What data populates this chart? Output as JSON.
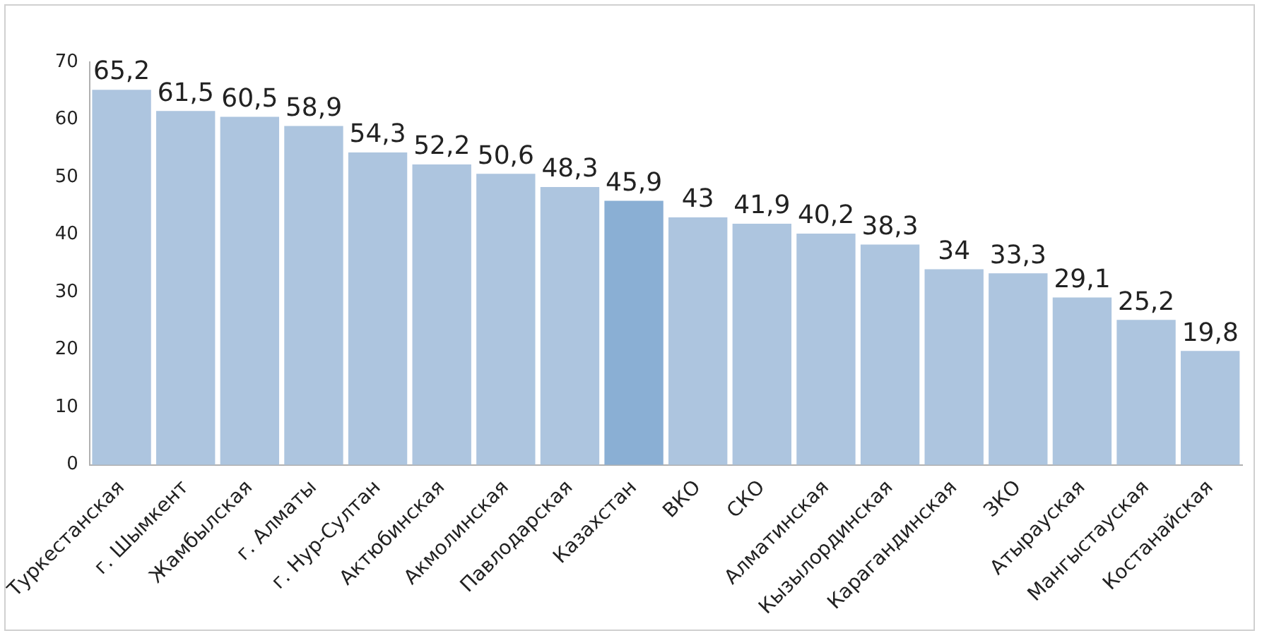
{
  "chart_data": {
    "type": "bar",
    "categories": [
      "Туркестанская",
      "г. Шымкент",
      "Жамбылская",
      "г. Алматы",
      "г. Нур-Султан",
      "Актюбинская",
      "Акмолинская",
      "Павлодарская",
      "Казахстан",
      "ВКО",
      "СКО",
      "Алматинская",
      "Кызылординская",
      "Карагандинская",
      "ЗКО",
      "Атырауская",
      "Мангыстауская",
      "Костанайская"
    ],
    "values": [
      65.2,
      61.5,
      60.5,
      58.9,
      54.3,
      52.2,
      50.6,
      48.3,
      45.9,
      43,
      41.9,
      40.2,
      38.3,
      34,
      33.3,
      29.1,
      25.2,
      19.8
    ],
    "value_labels": [
      "65,2",
      "61,5",
      "60,5",
      "58,9",
      "54,3",
      "52,2",
      "50,6",
      "48,3",
      "45,9",
      "43",
      "41,9",
      "40,2",
      "38,3",
      "34",
      "33,3",
      "29,1",
      "25,2",
      "19,8"
    ],
    "colors": [
      "#adc5df",
      "#adc5df",
      "#adc5df",
      "#adc5df",
      "#adc5df",
      "#adc5df",
      "#adc5df",
      "#adc5df",
      "#8aafd4",
      "#adc5df",
      "#adc5df",
      "#adc5df",
      "#adc5df",
      "#adc5df",
      "#adc5df",
      "#adc5df",
      "#adc5df",
      "#adc5df"
    ],
    "ylim": [
      0,
      70
    ],
    "yticks": [
      0,
      10,
      20,
      30,
      40,
      50,
      60,
      70
    ],
    "grid": false,
    "legend": false
  }
}
